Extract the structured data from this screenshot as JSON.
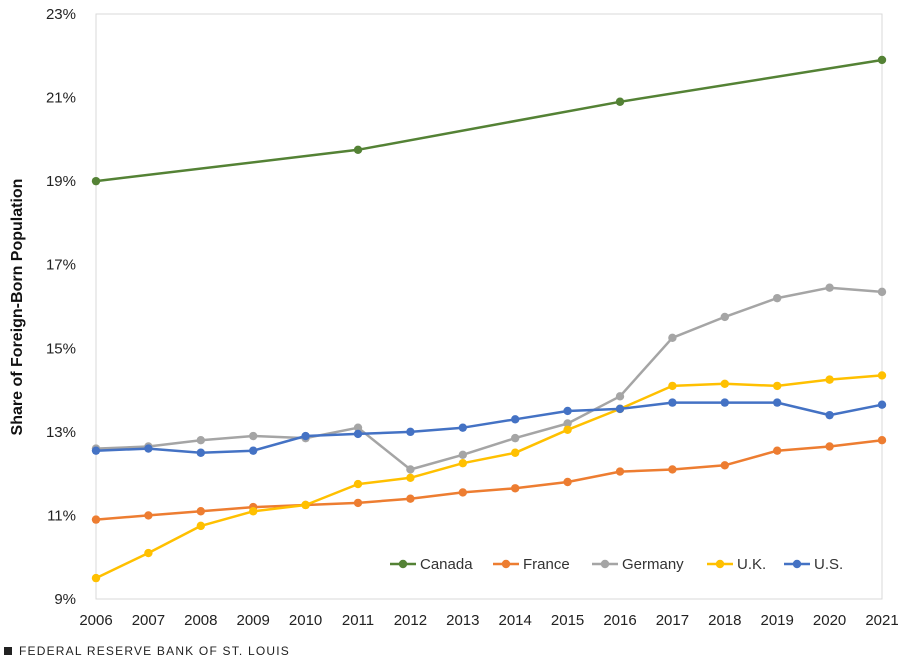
{
  "chart_data": {
    "type": "line",
    "ylabel": "Share of Foreign-Born Population",
    "xlabel": "",
    "x": [
      "2006",
      "2007",
      "2008",
      "2009",
      "2010",
      "2011",
      "2012",
      "2013",
      "2014",
      "2015",
      "2016",
      "2017",
      "2018",
      "2019",
      "2020",
      "2021"
    ],
    "y_ticks": [
      "23%",
      "21%",
      "19%",
      "17%",
      "15%",
      "13%",
      "11%",
      "9%"
    ],
    "ylim": [
      9,
      23
    ],
    "grid": false,
    "legend_position": "bottom-right",
    "series": [
      {
        "name": "Canada",
        "color": "#548235",
        "points": [
          [
            2006,
            19.0
          ],
          [
            2011,
            19.75
          ],
          [
            2016,
            20.9
          ],
          [
            2021,
            21.9
          ]
        ]
      },
      {
        "name": "France",
        "color": "#ED7D31",
        "points": [
          [
            2006,
            10.9
          ],
          [
            2007,
            11.0
          ],
          [
            2008,
            11.1
          ],
          [
            2009,
            11.2
          ],
          [
            2010,
            11.25
          ],
          [
            2011,
            11.3
          ],
          [
            2012,
            11.4
          ],
          [
            2013,
            11.55
          ],
          [
            2014,
            11.65
          ],
          [
            2015,
            11.8
          ],
          [
            2016,
            12.05
          ],
          [
            2017,
            12.1
          ],
          [
            2018,
            12.2
          ],
          [
            2019,
            12.55
          ],
          [
            2020,
            12.65
          ],
          [
            2021,
            12.8
          ]
        ]
      },
      {
        "name": "Germany",
        "color": "#A5A5A5",
        "points": [
          [
            2006,
            12.6
          ],
          [
            2007,
            12.65
          ],
          [
            2008,
            12.8
          ],
          [
            2009,
            12.9
          ],
          [
            2010,
            12.85
          ],
          [
            2011,
            13.1
          ],
          [
            2012,
            12.1
          ],
          [
            2013,
            12.45
          ],
          [
            2014,
            12.85
          ],
          [
            2015,
            13.2
          ],
          [
            2016,
            13.85
          ],
          [
            2017,
            15.25
          ],
          [
            2018,
            15.75
          ],
          [
            2019,
            16.2
          ],
          [
            2020,
            16.45
          ],
          [
            2021,
            16.35
          ]
        ]
      },
      {
        "name": "U.K.",
        "color": "#FFC000",
        "points": [
          [
            2006,
            9.5
          ],
          [
            2007,
            10.1
          ],
          [
            2008,
            10.75
          ],
          [
            2009,
            11.1
          ],
          [
            2010,
            11.25
          ],
          [
            2011,
            11.75
          ],
          [
            2012,
            11.9
          ],
          [
            2013,
            12.25
          ],
          [
            2014,
            12.5
          ],
          [
            2015,
            13.05
          ],
          [
            2016,
            13.55
          ],
          [
            2017,
            14.1
          ],
          [
            2018,
            14.15
          ],
          [
            2019,
            14.1
          ],
          [
            2020,
            14.25
          ],
          [
            2021,
            14.35
          ]
        ]
      },
      {
        "name": "U.S.",
        "color": "#4472C4",
        "points": [
          [
            2006,
            12.55
          ],
          [
            2007,
            12.6
          ],
          [
            2008,
            12.5
          ],
          [
            2009,
            12.55
          ],
          [
            2010,
            12.9
          ],
          [
            2011,
            12.95
          ],
          [
            2012,
            13.0
          ],
          [
            2013,
            13.1
          ],
          [
            2014,
            13.3
          ],
          [
            2015,
            13.5
          ],
          [
            2016,
            13.55
          ],
          [
            2017,
            13.7
          ],
          [
            2018,
            13.7
          ],
          [
            2019,
            13.7
          ],
          [
            2020,
            13.4
          ],
          [
            2021,
            13.65
          ]
        ]
      }
    ]
  },
  "footer": {
    "source": "FEDERAL RESERVE BANK OF ST. LOUIS"
  }
}
